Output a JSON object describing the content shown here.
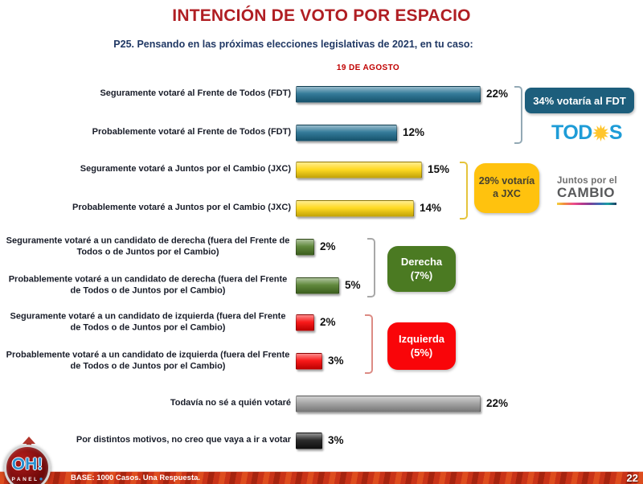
{
  "slide": {
    "title": "INTENCIÓN DE VOTO POR ESPACIO",
    "question": "P25. Pensando en las próximas elecciones legislativas de 2021, en tu caso:",
    "date_label": "19 DE AGOSTO",
    "base_text": "BASE: 1000 Casos. Una Respuesta.",
    "page_number": "22"
  },
  "chart_data": {
    "type": "bar",
    "orientation": "horizontal",
    "title": "Intención de voto por espacio — 19 de agosto",
    "unit": "%",
    "xlim": [
      0,
      25
    ],
    "grid": false,
    "categories": [
      "Seguramente votaré al Frente de Todos (FDT)",
      "Probablemente votaré al Frente de Todos (FDT)",
      "Seguramente votaré a Juntos por el Cambio (JXC)",
      "Probablemente votaré a Juntos por el Cambio (JXC)",
      "Seguramente votaré a un candidato de derecha (fuera del Frente de Todos o de Juntos por el Cambio)",
      "Probablemente votaré a un candidato de derecha (fuera del Frente de Todos o de Juntos por el Cambio)",
      "Seguramente votaré a un candidato de izquierda (fuera del Frente de Todos o de Juntos por el Cambio)",
      "Probablemente votaré a un candidato de izquierda (fuera del Frente de Todos o de Juntos por el Cambio)",
      "Todavía no sé a quién votaré",
      "Por distintos motivos, no creo que vaya a ir a votar"
    ],
    "values": [
      22,
      12,
      15,
      14,
      2,
      5,
      2,
      3,
      22,
      3
    ],
    "colors": [
      "#1D6C8E",
      "#1D6C8E",
      "#FFD60A",
      "#FFD60A",
      "#4E7B26",
      "#4E7B26",
      "#F80000",
      "#F80000",
      "#9B9B9B",
      "#131313"
    ],
    "group_totals": {
      "FDT": 34,
      "JXC": 29,
      "Derecha": 7,
      "Izquierda": 5
    }
  },
  "callouts": {
    "fdt": {
      "label": "34% votaría al FDT",
      "bg": "#1D5E7C"
    },
    "jxc": {
      "label": "29% votaría a JXC",
      "bg": "#FFC20E"
    },
    "derecha": {
      "label": "Derecha (7%)",
      "bg": "#4B7A22"
    },
    "izquierda": {
      "label": "Izquierda (5%)",
      "bg": "#F90509"
    }
  },
  "logos": {
    "todos": {
      "text_before_sun": "TOD",
      "text_after_sun": "S",
      "text_color": "#1E9CD7",
      "sun_color": "#FFC52C"
    },
    "jxc": {
      "top": "Juntos por el",
      "bottom": "CAMBIO"
    },
    "oh_panel": {
      "main": "OH!",
      "sub": "PANEL"
    }
  }
}
